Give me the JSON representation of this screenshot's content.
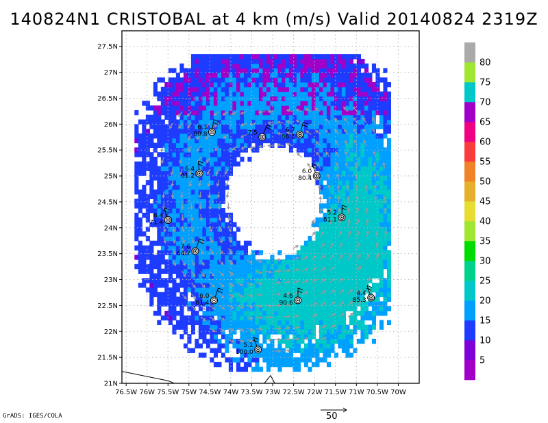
{
  "title": "140824N1 CRISTOBAL at 4 km (m/s) Valid 20140824 2319Z",
  "credit": "GrADS: IGES/COLA",
  "reference_vector": {
    "label": "50"
  },
  "map": {
    "lon_range": [
      -76.6,
      -69.5
    ],
    "lat_range": [
      21.0,
      27.8
    ],
    "lon_ticks": [
      "76.5W",
      "76W",
      "75.5W",
      "75W",
      "74.5W",
      "74W",
      "73.5W",
      "73W",
      "72.5W",
      "72W",
      "71.5W",
      "71W",
      "70.5W",
      "70W"
    ],
    "lat_ticks": [
      "21N",
      "21.5N",
      "22N",
      "22.5N",
      "23N",
      "23.5N",
      "24N",
      "24.5N",
      "25N",
      "25.5N",
      "26N",
      "26.5N",
      "27N",
      "27.5N"
    ],
    "grid": true,
    "storm_center": {
      "lon": -73.0,
      "lat": 24.5
    }
  },
  "colorbar": {
    "levels": [
      "5",
      "10",
      "15",
      "20",
      "25",
      "30",
      "35",
      "40",
      "45",
      "50",
      "55",
      "60",
      "65",
      "70",
      "75",
      "80"
    ],
    "colors": {
      "c5": "#a000c8",
      "c10": "#8000d8",
      "c15": "#1e3cff",
      "c20": "#00a0ff",
      "c25": "#00c8c8",
      "c30": "#00d28c",
      "c35": "#00dc00",
      "c40": "#a0e632",
      "c45": "#e6dc32",
      "c50": "#e6af2d",
      "c55": "#f08228",
      "c60": "#fa3c3c",
      "c65": "#f00082",
      "c70": "#a000c8",
      "c75": "#00c8c8",
      "c80": "#a0e632",
      "top": "#aaaaaa"
    }
  },
  "stations": [
    {
      "line1": "6.3",
      "line2": "80.8",
      "lon": -74.45,
      "lat": 25.85
    },
    {
      "line1": "7.5",
      "line2": "",
      "lon": -73.25,
      "lat": 25.75
    },
    {
      "line1": "6.7",
      "line2": "86.1",
      "lon": -72.35,
      "lat": 25.8
    },
    {
      "line1": "6.4",
      "line2": "81.2",
      "lon": -74.75,
      "lat": 25.05
    },
    {
      "line1": "6.0",
      "line2": "80.4",
      "lon": -71.95,
      "lat": 25.0
    },
    {
      "line1": "6.4",
      "line2": "71.4",
      "lon": -75.5,
      "lat": 24.15
    },
    {
      "line1": "5.2",
      "line2": "81.1",
      "lon": -71.35,
      "lat": 24.2
    },
    {
      "line1": "7.6",
      "line2": "64.7",
      "lon": -74.85,
      "lat": 23.55
    },
    {
      "line1": "6.0",
      "line2": "81.4",
      "lon": -74.4,
      "lat": 22.6
    },
    {
      "line1": "4.6",
      "line2": "90.6",
      "lon": -72.4,
      "lat": 22.6
    },
    {
      "line1": "4.4",
      "line2": "85.3",
      "lon": -70.65,
      "lat": 22.65
    },
    {
      "line1": "5.1",
      "line2": "100.0",
      "lon": -73.35,
      "lat": 21.65
    }
  ]
}
